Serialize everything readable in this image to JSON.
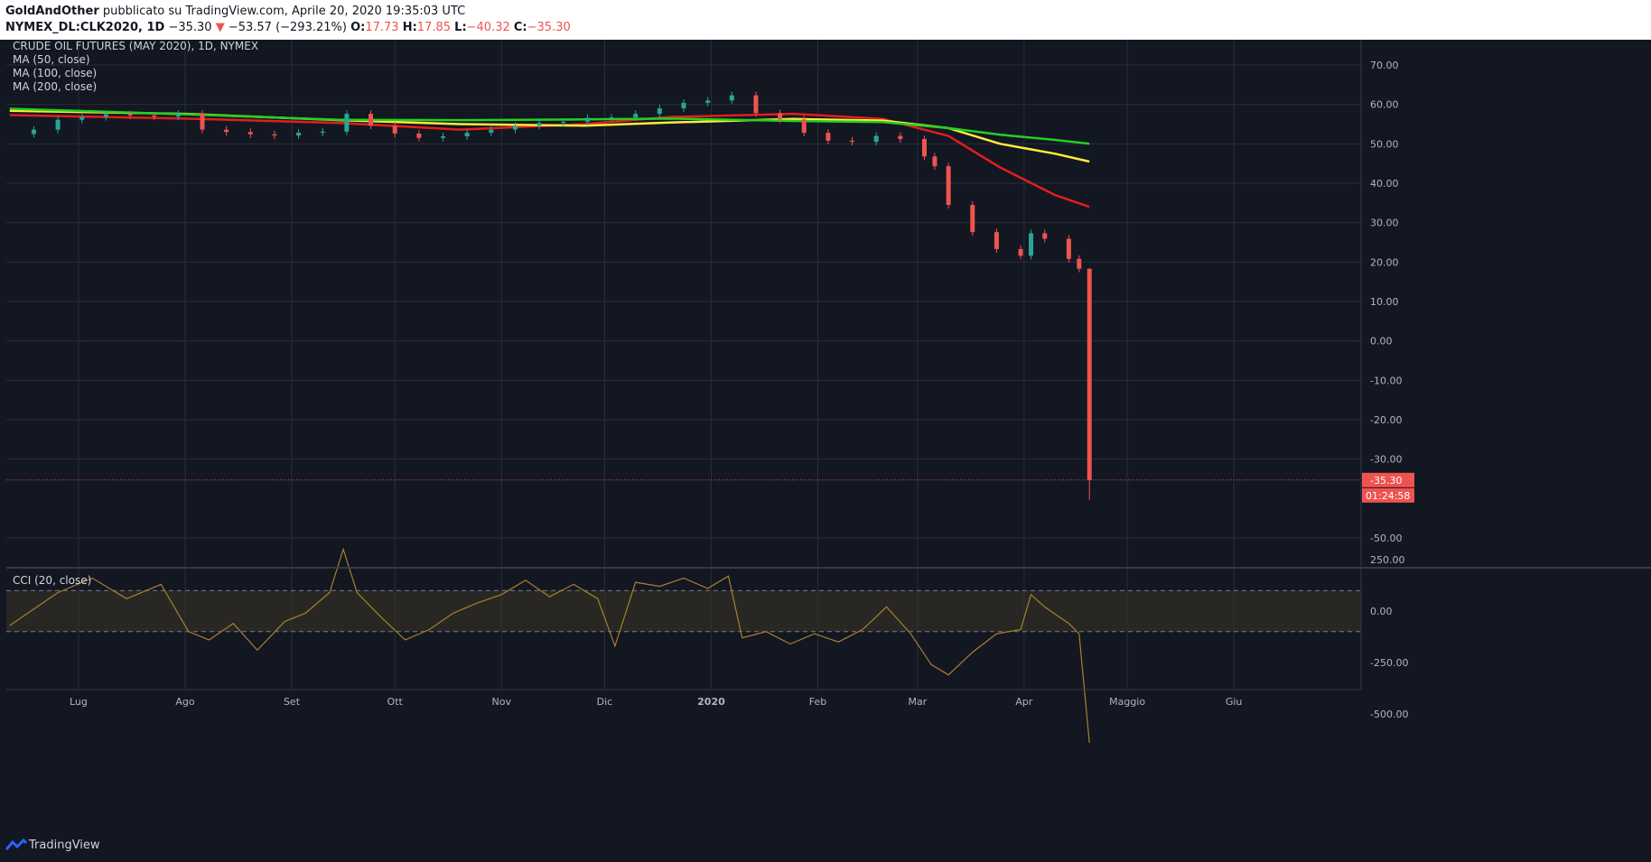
{
  "header": {
    "author": "GoldAndOther",
    "published_text": " pubblicato su TradingView.com, Aprile 20, 2020 19:35:03 UTC",
    "symbol": "NYMEX_DL:CLK2020, 1D",
    "last": "−35.30",
    "change_arrow": "▼",
    "change": "−53.57 (−293.21%)",
    "open_label": "O:",
    "open": "17.73",
    "high_label": "H:",
    "high": "17.85",
    "low_label": "L:",
    "low": "−40.32",
    "close_label": "C:",
    "close": "−35.30"
  },
  "footer": {
    "brand": "TradingView",
    "logo_icon": "tradingview-logo-icon"
  },
  "colors": {
    "background": "#131722",
    "up": "#26a69a",
    "down": "#ef5350",
    "ma50": "#e01e1e",
    "ma100": "#ffeb3b",
    "ma200": "#22d022",
    "cci": "#a8802a"
  },
  "chart_data": [
    {
      "type": "candlestick",
      "title": "CRUDE OIL FUTURES (MAY 2020), 1D, NYMEX",
      "legend": [
        "MA (50, close)",
        "MA (100, close)",
        "MA (200, close)"
      ],
      "x_labels": [
        {
          "label": "Lug",
          "date": "2019-07-01"
        },
        {
          "label": "Ago",
          "date": "2019-08-01"
        },
        {
          "label": "Set",
          "date": "2019-09-01"
        },
        {
          "label": "Ott",
          "date": "2019-10-01"
        },
        {
          "label": "Nov",
          "date": "2019-11-01"
        },
        {
          "label": "Dic",
          "date": "2019-12-01"
        },
        {
          "label": "2020",
          "date": "2020-01-01"
        },
        {
          "label": "Feb",
          "date": "2020-02-01"
        },
        {
          "label": "Mar",
          "date": "2020-03-01"
        },
        {
          "label": "Apr",
          "date": "2020-04-01"
        },
        {
          "label": "Maggio",
          "date": "2020-05-01"
        },
        {
          "label": "Giu",
          "date": "2020-06-01"
        }
      ],
      "y_ticks": [
        "70.00",
        "60.00",
        "50.00",
        "40.00",
        "30.00",
        "20.00",
        "10.00",
        "0.00",
        "-10.00",
        "-20.00",
        "-30.00",
        "-50.00"
      ],
      "ylim": [
        -50,
        75
      ],
      "last_price_label": "-35.30",
      "countdown_label": "01:24:58",
      "close_series": [
        [
          "2019-06-11",
          52.5
        ],
        [
          "2019-06-18",
          53.6
        ],
        [
          "2019-06-25",
          56.1
        ],
        [
          "2019-07-02",
          56.8
        ],
        [
          "2019-07-09",
          57.5
        ],
        [
          "2019-07-16",
          57.2
        ],
        [
          "2019-07-23",
          56.9
        ],
        [
          "2019-07-30",
          57.6
        ],
        [
          "2019-08-06",
          53.6
        ],
        [
          "2019-08-13",
          53.0
        ],
        [
          "2019-08-20",
          52.4
        ],
        [
          "2019-08-27",
          52.1
        ],
        [
          "2019-09-03",
          52.8
        ],
        [
          "2019-09-10",
          53.1
        ],
        [
          "2019-09-17",
          57.6
        ],
        [
          "2019-09-24",
          54.6
        ],
        [
          "2019-10-01",
          52.6
        ],
        [
          "2019-10-08",
          51.5
        ],
        [
          "2019-10-15",
          51.9
        ],
        [
          "2019-10-22",
          52.8
        ],
        [
          "2019-10-29",
          53.6
        ],
        [
          "2019-11-05",
          54.6
        ],
        [
          "2019-11-12",
          55.3
        ],
        [
          "2019-11-19",
          55.6
        ],
        [
          "2019-11-26",
          56.6
        ],
        [
          "2019-12-03",
          56.7
        ],
        [
          "2019-12-10",
          57.6
        ],
        [
          "2019-12-17",
          59.0
        ],
        [
          "2019-12-24",
          60.4
        ],
        [
          "2019-12-31",
          61.0
        ],
        [
          "2020-01-07",
          62.3
        ],
        [
          "2020-01-14",
          57.8
        ],
        [
          "2020-01-21",
          56.2
        ],
        [
          "2020-01-28",
          52.8
        ],
        [
          "2020-02-04",
          50.8
        ],
        [
          "2020-02-11",
          50.5
        ],
        [
          "2020-02-18",
          52.0
        ],
        [
          "2020-02-25",
          51.2
        ],
        [
          "2020-03-03",
          46.8
        ],
        [
          "2020-03-06",
          44.3
        ],
        [
          "2020-03-10",
          34.5
        ],
        [
          "2020-03-17",
          27.6
        ],
        [
          "2020-03-24",
          23.3
        ],
        [
          "2020-03-31",
          21.6
        ],
        [
          "2020-04-03",
          27.3
        ],
        [
          "2020-04-07",
          25.9
        ],
        [
          "2020-04-14",
          20.8
        ],
        [
          "2020-04-17",
          18.3
        ],
        [
          "2020-04-20",
          -35.3
        ]
      ],
      "ma_series": [
        {
          "name": "MA (50, close)",
          "points": [
            [
              "2019-06-11",
              57.3
            ],
            [
              "2019-08-01",
              56.4
            ],
            [
              "2019-09-15",
              55.3
            ],
            [
              "2019-10-20",
              53.6
            ],
            [
              "2019-11-25",
              55.0
            ],
            [
              "2019-12-20",
              56.8
            ],
            [
              "2020-01-25",
              57.6
            ],
            [
              "2020-02-20",
              56.3
            ],
            [
              "2020-03-10",
              52.0
            ],
            [
              "2020-03-25",
              44.0
            ],
            [
              "2020-04-10",
              37.0
            ],
            [
              "2020-04-20",
              34.0
            ]
          ]
        },
        {
          "name": "MA (100, close)",
          "points": [
            [
              "2019-06-11",
              58.4
            ],
            [
              "2019-08-01",
              57.6
            ],
            [
              "2019-09-15",
              56.0
            ],
            [
              "2019-10-20",
              55.0
            ],
            [
              "2019-11-25",
              54.6
            ],
            [
              "2019-12-20",
              55.4
            ],
            [
              "2020-01-25",
              56.3
            ],
            [
              "2020-02-20",
              55.9
            ],
            [
              "2020-03-10",
              54.0
            ],
            [
              "2020-03-25",
              50.0
            ],
            [
              "2020-04-10",
              47.5
            ],
            [
              "2020-04-20",
              45.5
            ]
          ]
        },
        {
          "name": "MA (200, close)",
          "points": [
            [
              "2019-06-11",
              58.9
            ],
            [
              "2019-08-01",
              57.5
            ],
            [
              "2019-09-15",
              56.1
            ],
            [
              "2019-10-20",
              56.0
            ],
            [
              "2019-11-25",
              56.2
            ],
            [
              "2019-12-20",
              56.4
            ],
            [
              "2020-01-25",
              55.8
            ],
            [
              "2020-02-20",
              55.5
            ],
            [
              "2020-03-10",
              54.0
            ],
            [
              "2020-03-25",
              52.3
            ],
            [
              "2020-04-10",
              51.0
            ],
            [
              "2020-04-20",
              50.0
            ]
          ]
        }
      ]
    },
    {
      "type": "line",
      "title": "CCI (20, close)",
      "y_ticks": [
        "250.00",
        "0.00",
        "-250.00",
        "-500.00"
      ],
      "ylim": [
        -650,
        320
      ],
      "bands": [
        100,
        -100
      ],
      "series": [
        {
          "name": "CCI (20, close)",
          "points": [
            [
              "2019-06-11",
              -70
            ],
            [
              "2019-06-25",
              90
            ],
            [
              "2019-07-05",
              160
            ],
            [
              "2019-07-15",
              60
            ],
            [
              "2019-07-25",
              130
            ],
            [
              "2019-08-02",
              -100
            ],
            [
              "2019-08-08",
              -140
            ],
            [
              "2019-08-15",
              -60
            ],
            [
              "2019-08-22",
              -190
            ],
            [
              "2019-08-30",
              -50
            ],
            [
              "2019-09-05",
              -10
            ],
            [
              "2019-09-12",
              90
            ],
            [
              "2019-09-16",
              300
            ],
            [
              "2019-09-20",
              90
            ],
            [
              "2019-09-27",
              -30
            ],
            [
              "2019-10-04",
              -140
            ],
            [
              "2019-10-11",
              -90
            ],
            [
              "2019-10-18",
              -10
            ],
            [
              "2019-10-25",
              40
            ],
            [
              "2019-11-01",
              80
            ],
            [
              "2019-11-08",
              150
            ],
            [
              "2019-11-15",
              70
            ],
            [
              "2019-11-22",
              130
            ],
            [
              "2019-11-29",
              60
            ],
            [
              "2019-12-04",
              -170
            ],
            [
              "2019-12-10",
              140
            ],
            [
              "2019-12-17",
              120
            ],
            [
              "2019-12-24",
              160
            ],
            [
              "2019-12-31",
              110
            ],
            [
              "2020-01-06",
              170
            ],
            [
              "2020-01-10",
              -130
            ],
            [
              "2020-01-17",
              -100
            ],
            [
              "2020-01-24",
              -160
            ],
            [
              "2020-01-31",
              -110
            ],
            [
              "2020-02-07",
              -150
            ],
            [
              "2020-02-14",
              -90
            ],
            [
              "2020-02-21",
              20
            ],
            [
              "2020-02-28",
              -110
            ],
            [
              "2020-03-05",
              -260
            ],
            [
              "2020-03-10",
              -310
            ],
            [
              "2020-03-17",
              -200
            ],
            [
              "2020-03-24",
              -110
            ],
            [
              "2020-03-31",
              -90
            ],
            [
              "2020-04-03",
              80
            ],
            [
              "2020-04-07",
              20
            ],
            [
              "2020-04-14",
              -60
            ],
            [
              "2020-04-17",
              -110
            ],
            [
              "2020-04-20",
              -640
            ]
          ]
        }
      ]
    }
  ]
}
